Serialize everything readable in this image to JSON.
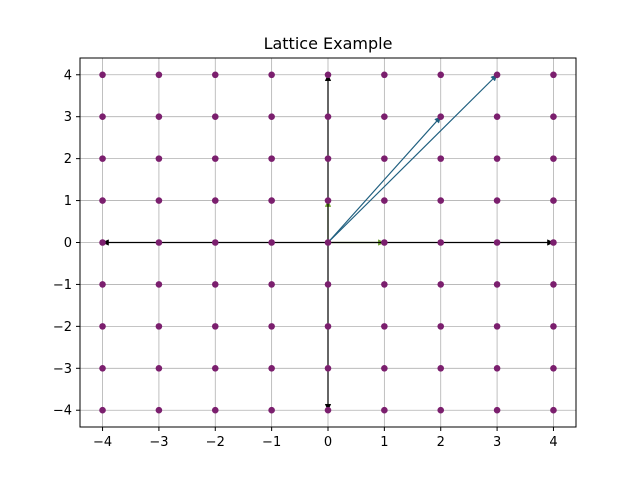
{
  "chart_data": {
    "type": "scatter",
    "title": "Lattice Example",
    "xlabel": "",
    "ylabel": "",
    "xlim": [
      -4.4,
      4.4
    ],
    "ylim": [
      -4.4,
      4.4
    ],
    "xticks": [
      -4,
      -3,
      -2,
      -1,
      0,
      1,
      2,
      3,
      4
    ],
    "yticks": [
      -4,
      -3,
      -2,
      -1,
      0,
      1,
      2,
      3,
      4
    ],
    "xtick_labels": [
      "−4",
      "−3",
      "−2",
      "−1",
      "0",
      "1",
      "2",
      "3",
      "4"
    ],
    "ytick_labels": [
      "−4",
      "−3",
      "−2",
      "−1",
      "0",
      "1",
      "2",
      "3",
      "4"
    ],
    "grid": true,
    "lattice": {
      "x_range": [
        -4,
        4
      ],
      "y_range": [
        -4,
        4
      ],
      "step": 1,
      "color": "#7b1f6e"
    },
    "arrows": [
      {
        "from": [
          0,
          0
        ],
        "to": [
          1,
          0
        ],
        "color": "#6fa32e"
      },
      {
        "from": [
          0,
          0
        ],
        "to": [
          0,
          1
        ],
        "color": "#6fa32e"
      },
      {
        "from": [
          0,
          0
        ],
        "to": [
          2,
          3
        ],
        "color": "#1f5f7f"
      },
      {
        "from": [
          0,
          0
        ],
        "to": [
          3,
          4
        ],
        "color": "#1f5f7f"
      },
      {
        "from": [
          0,
          0
        ],
        "to": [
          4,
          0
        ],
        "color": "#000000"
      },
      {
        "from": [
          0,
          0
        ],
        "to": [
          -4,
          0
        ],
        "color": "#000000"
      },
      {
        "from": [
          0,
          0
        ],
        "to": [
          0,
          4
        ],
        "color": "#000000"
      },
      {
        "from": [
          0,
          0
        ],
        "to": [
          0,
          -4
        ],
        "color": "#000000"
      }
    ]
  }
}
